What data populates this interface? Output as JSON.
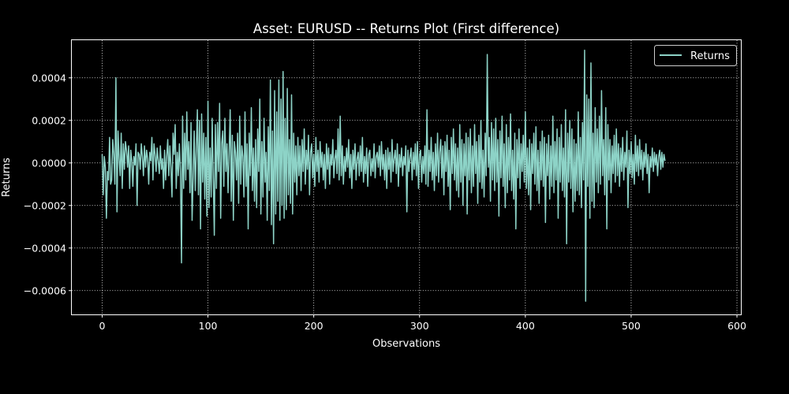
{
  "chart_data": {
    "type": "line",
    "title": "Asset: EURUSD -- Returns Plot (First difference)",
    "xlabel": "Observations",
    "ylabel": "Returns",
    "xlim": [
      -28.7,
      603.7
    ],
    "ylim": [
      -0.000712,
      0.000577
    ],
    "x_ticks": [
      0,
      100,
      200,
      300,
      400,
      500,
      600
    ],
    "x_tick_labels": [
      "0",
      "100",
      "200",
      "300",
      "400",
      "500",
      "600"
    ],
    "y_ticks": [
      0.0004,
      0.0002,
      0.0,
      -0.0002,
      -0.0004,
      -0.0006
    ],
    "y_tick_labels": [
      "0.0004",
      "0.0002",
      "0.0000",
      "−0.0002",
      "−0.0004",
      "−0.0006"
    ],
    "grid": true,
    "legend_position": "top-right",
    "series": [
      {
        "name": "Returns",
        "color": "#8dd3c7",
        "x_start": 0,
        "y": [
          4e-05,
          -0.00015,
          3e-05,
          -2e-05,
          -0.00026,
          -4e-05,
          -8e-05,
          0.00012,
          -0.0001,
          -8e-05,
          0.00011,
          4e-05,
          -0.0001,
          0.0004,
          -0.00023,
          0.00015,
          2e-05,
          -6e-05,
          0.00014,
          -0.00012,
          9e-05,
          -3e-05,
          0.0001,
          6e-05,
          -2e-05,
          8e-05,
          -0.00012,
          6e-05,
          1e-05,
          -0.00011,
          3e-05,
          -1e-05,
          9e-05,
          -0.0002,
          5e-05,
          4e-05,
          -3e-05,
          9e-05,
          3e-05,
          -6e-05,
          8e-05,
          -2e-05,
          6e-05,
          2e-05,
          -0.0001,
          5e-05,
          1e-05,
          0.00012,
          -8e-05,
          9e-05,
          4e-05,
          -4e-05,
          7e-05,
          1e-05,
          -5e-05,
          8e-05,
          -3e-05,
          2e-05,
          -0.00012,
          6e-05,
          -8e-05,
          3e-05,
          0.00011,
          -6e-05,
          8e-05,
          -2e-05,
          -0.00016,
          0.00014,
          4e-05,
          0.00018,
          -0.00012,
          5e-05,
          -6e-05,
          9e-05,
          -4e-05,
          -0.00047,
          0.00022,
          -0.00012,
          0.00014,
          -8e-05,
          0.00024,
          -3e-05,
          0.0001,
          -0.00014,
          0.00019,
          -0.00027,
          -6e-05,
          0.00015,
          -0.00013,
          7e-05,
          0.00025,
          -0.00015,
          0.0002,
          -0.00031,
          0.00023,
          -9e-05,
          0.00014,
          -0.00017,
          0.00012,
          -0.00025,
          0.00029,
          -0.00021,
          7e-05,
          -0.00016,
          0.00021,
          -7e-05,
          -0.00034,
          0.00018,
          -0.00012,
          0.00019,
          -4e-05,
          0.00028,
          -0.00026,
          9e-05,
          0.00015,
          -0.00011,
          0.00021,
          -4e-05,
          9e-05,
          -0.00014,
          5e-05,
          0.00025,
          -0.00018,
          0.00013,
          -0.00027,
          0.0001,
          5e-05,
          -8e-05,
          0.00014,
          -0.00019,
          0.00022,
          -0.0001,
          8e-05,
          3e-05,
          -0.00016,
          0.00024,
          -0.00011,
          9e-05,
          -0.00031,
          0.00014,
          -6e-05,
          0.00026,
          -0.00013,
          7e-05,
          -0.00018,
          0.00011,
          -0.00021,
          0.00016,
          -4e-05,
          0.0003,
          -0.00024,
          0.0001,
          -0.00016,
          0.00021,
          -9e-05,
          5e-05,
          -0.00027,
          0.00017,
          -0.00013,
          0.00039,
          -0.00029,
          0.00015,
          -0.00038,
          0.00034,
          -0.00024,
          0.00024,
          -0.00018,
          0.00039,
          -0.00027,
          0.0003,
          -0.0002,
          0.00043,
          -0.00026,
          0.00021,
          -0.00022,
          0.00035,
          -0.00015,
          0.00011,
          -0.00019,
          0.00032,
          -0.00024,
          0.00014,
          -9e-05,
          8e-05,
          -0.00015,
          0.00012,
          -6e-05,
          8e-05,
          -0.00013,
          0.00011,
          -4e-05,
          0.00016,
          -0.0001,
          6e-05,
          -3e-05,
          0.00013,
          -0.00015,
          5e-05,
          9e-05,
          -7e-05,
          4e-05,
          -0.00011,
          0.00012,
          -4e-05,
          6e-05,
          -9e-05,
          0.0001,
          -2e-05,
          5e-05,
          -8e-05,
          4e-05,
          -0.00012,
          9e-05,
          -3e-05,
          7e-05,
          -0.0001,
          4e-05,
          -1e-05,
          0.00011,
          -7e-05,
          2e-05,
          6e-05,
          -5e-05,
          0.00016,
          -8e-05,
          0.00022,
          -6e-05,
          8e-05,
          -0.0001,
          3e-05,
          -4e-05,
          7e-05,
          -2e-05,
          0.00011,
          -7e-05,
          4e-05,
          -0.00012,
          6e-05,
          -3e-05,
          9e-05,
          -8e-05,
          2e-05,
          5e-05,
          -6e-05,
          8e-05,
          -4e-05,
          0.00012,
          -9e-05,
          3e-05,
          -5e-05,
          7e-05,
          -0.00011,
          4e-05,
          6e-05,
          -6e-05,
          2e-05,
          -4e-05,
          9e-05,
          -7e-05,
          3e-05,
          5e-05,
          -2e-05,
          8e-05,
          -6e-05,
          0.0001,
          -3e-05,
          4e-05,
          -8e-05,
          6e-05,
          -0.00012,
          7e-05,
          -3e-05,
          5e-05,
          -9e-05,
          0.00011,
          -4e-05,
          2e-05,
          6e-05,
          -5e-05,
          9e-05,
          -0.00011,
          4e-05,
          -2e-05,
          7e-05,
          -6e-05,
          3e-05,
          -1e-05,
          8e-05,
          -0.00023,
          6e-05,
          -4e-05,
          3e-05,
          7e-05,
          -8e-05,
          5e-05,
          -3e-05,
          9e-05,
          -6e-05,
          0.0001,
          -0.00012,
          4e-05,
          6e-05,
          -9e-05,
          3e-05,
          -5e-05,
          8e-05,
          -0.0001,
          0.00025,
          -0.00011,
          6e-05,
          -4e-05,
          0.00012,
          -8e-05,
          5e-05,
          -0.00013,
          9e-05,
          -6e-05,
          0.00014,
          -9e-05,
          5e-05,
          0.00011,
          -7e-05,
          8e-05,
          -0.00015,
          0.0001,
          -4e-05,
          0.00013,
          -0.00011,
          6e-05,
          -0.00022,
          0.00012,
          -5e-05,
          0.00016,
          -8e-05,
          9e-05,
          -0.00013,
          7e-05,
          -0.00016,
          0.00018,
          -9e-05,
          0.00011,
          -0.0002,
          9e-05,
          -6e-05,
          0.00014,
          -0.00024,
          0.00012,
          -8e-05,
          0.00016,
          -0.00014,
          8e-05,
          -0.00011,
          0.00018,
          -5e-05,
          0.0001,
          -0.00019,
          0.00013,
          -9e-05,
          0.0002,
          -0.00012,
          6e-05,
          -0.00016,
          0.00014,
          -6e-05,
          0.00051,
          -2e-05,
          0.00012,
          -0.00018,
          0.00019,
          -8e-05,
          0.00016,
          -0.00013,
          0.00021,
          -9e-05,
          0.00011,
          -0.00025,
          0.00015,
          -7e-05,
          0.00022,
          -0.00011,
          9e-05,
          -0.00021,
          0.00018,
          -0.00014,
          0.00012,
          -8e-05,
          0.00023,
          -0.00013,
          6e-05,
          -0.00017,
          0.00014,
          -0.00031,
          0.00011,
          -7e-05,
          0.00016,
          -0.00012,
          9e-05,
          -4e-05,
          0.00013,
          -9e-05,
          0.00024,
          -0.00012,
          7e-05,
          -0.00015,
          0.00011,
          -0.00022,
          9e-05,
          -5e-05,
          0.00014,
          -0.0001,
          0.00017,
          -0.00013,
          6e-05,
          -0.00019,
          0.0001,
          -8e-05,
          0.00015,
          -0.00011,
          0.00012,
          -0.00028,
          9e-05,
          -6e-05,
          0.00013,
          -0.00017,
          8e-05,
          -0.00011,
          0.00022,
          -0.00014,
          0.0001,
          -8e-05,
          0.00016,
          -0.00026,
          0.00012,
          -9e-05,
          0.00018,
          -0.00013,
          7e-05,
          -0.00016,
          0.00025,
          -0.00038,
          0.00014,
          -9e-05,
          0.0002,
          -0.00012,
          0.00016,
          -0.00023,
          0.00011,
          -0.00018,
          9e-05,
          -0.00013,
          0.00024,
          -0.00015,
          0.00012,
          -0.00021,
          0.00019,
          -8e-05,
          0.00053,
          -0.00065,
          0.00032,
          -0.00011,
          0.0003,
          -0.00026,
          0.00047,
          -0.00018,
          0.00014,
          -0.00021,
          0.00026,
          -9e-05,
          0.00016,
          -0.00014,
          0.00022,
          -0.0001,
          0.00034,
          -6e-05,
          0.00011,
          -0.00015,
          0.00026,
          -0.00031,
          0.00018,
          -8e-05,
          0.00011,
          -0.00014,
          8e-05,
          -5e-05,
          0.00013,
          -9e-05,
          0.00016,
          -6e-05,
          9e-05,
          -0.00011,
          7e-05,
          -4e-05,
          0.00012,
          -8e-05,
          5e-05,
          -2e-05,
          0.00015,
          -0.00021,
          6e-05,
          -5e-05,
          0.0001,
          -7e-05,
          4e-05,
          -0.0001,
          0.00013,
          -4e-05,
          8e-05,
          -6e-05,
          0.00011,
          -3e-05,
          6e-05,
          -8e-05,
          5e-05,
          -2e-05,
          9e-05,
          -5e-05,
          4e-05,
          -0.00014,
          3e-05,
          -2e-05,
          7e-05,
          -4e-05,
          5e-05,
          -1e-05,
          4e-05,
          -6e-05,
          3e-05,
          6e-05,
          -3e-05,
          5e-05,
          -2e-05,
          4e-05,
          1e-05
        ]
      }
    ]
  }
}
